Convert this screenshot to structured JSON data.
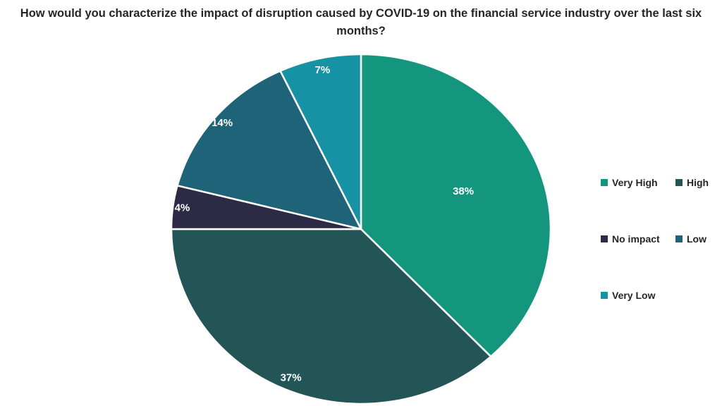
{
  "chart_data": {
    "type": "pie",
    "title": "How would you characterize the impact of disruption caused by COVID-19 on the financial service industry over the last six months?",
    "title_color": "#262626",
    "categories": [
      "Very High",
      "High",
      "No impact",
      "Low",
      "Very Low"
    ],
    "values": [
      38,
      37,
      4,
      14,
      7
    ],
    "unit": "percent",
    "data_labels": [
      "38%",
      "37%",
      "4%",
      "14%",
      "7%"
    ],
    "colors": [
      "#14967E",
      "#235456",
      "#2D2A45",
      "#1E6378",
      "#1792A5"
    ],
    "start_angle_deg": 0,
    "direction": "clockwise",
    "slice_border_color": "#FFFFFF",
    "data_label_color": "#FFFFFF",
    "label_radius_fractions": [
      0.58,
      0.93,
      0.95,
      0.95,
      0.93
    ],
    "legend": {
      "position": "right",
      "columns": 2,
      "rows": [
        [
          "Very High",
          "High"
        ],
        [
          "No impact",
          "Low"
        ],
        [
          "Very Low"
        ]
      ],
      "items": [
        "Very High",
        "High",
        "No impact",
        "Low",
        "Very Low"
      ],
      "text_color": "#262626"
    }
  }
}
